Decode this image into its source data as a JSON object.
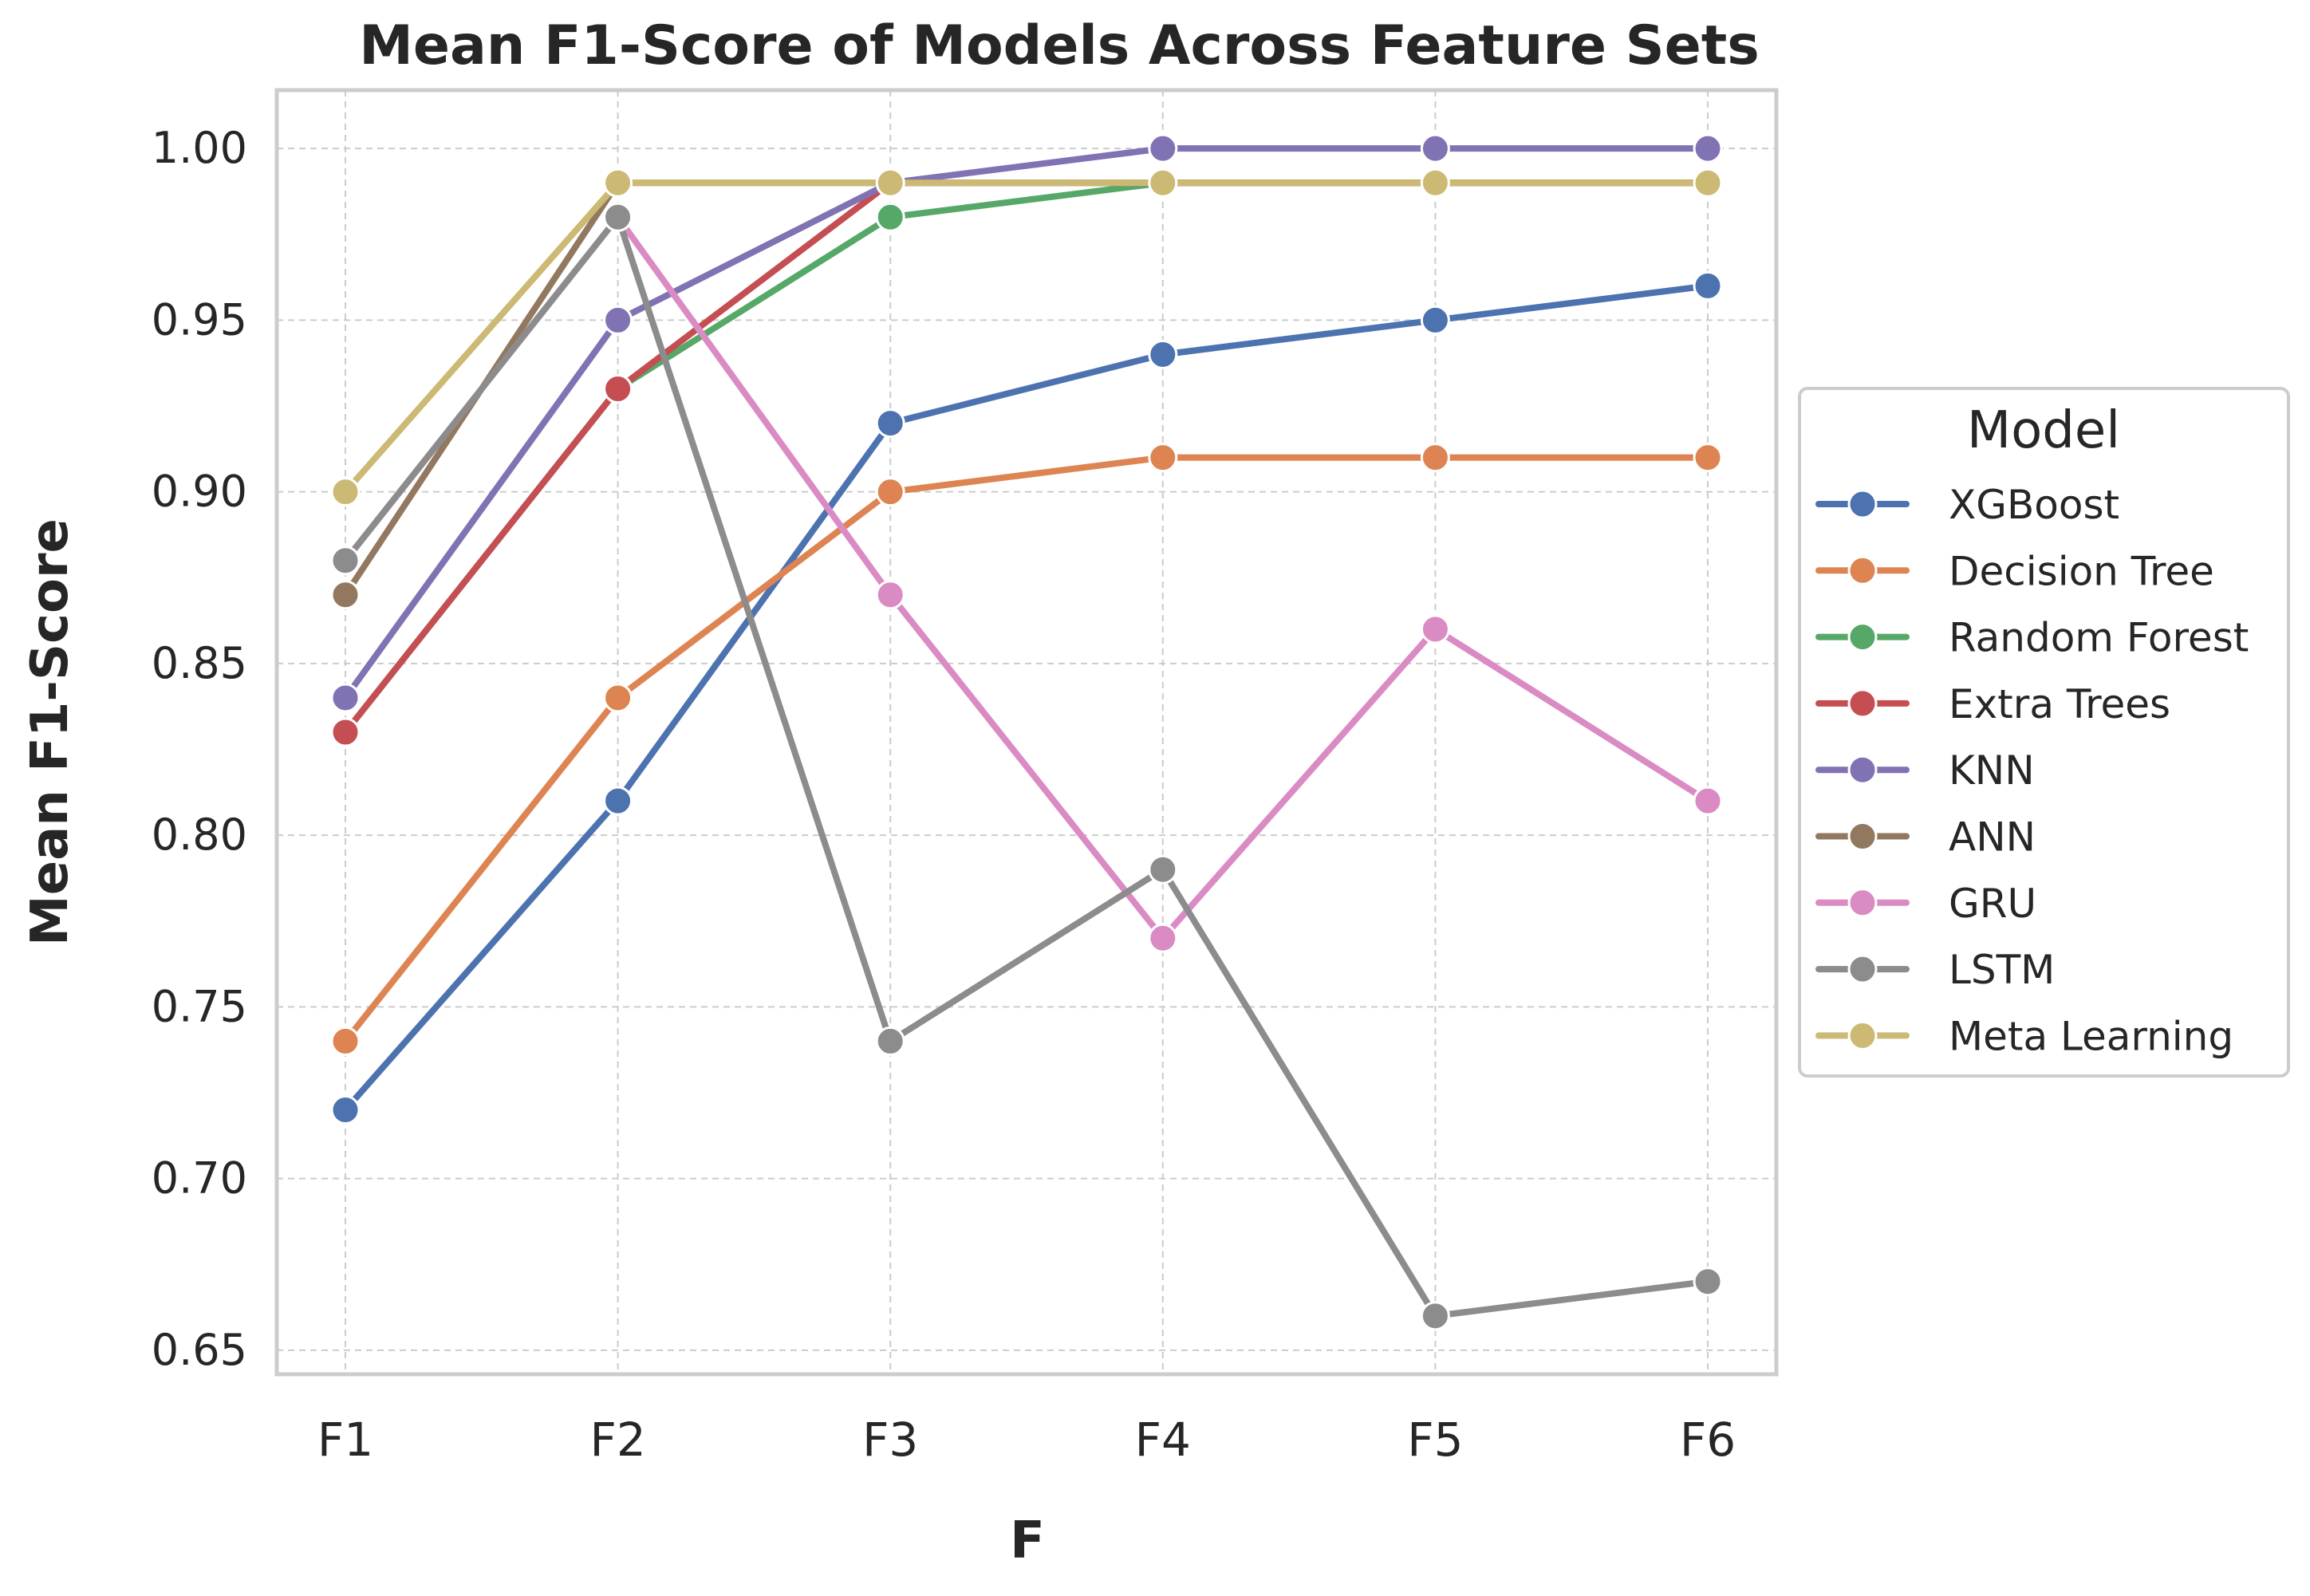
{
  "chart_data": {
    "type": "line",
    "title": "Mean F1-Score of Models Across Feature Sets",
    "xlabel": "F",
    "ylabel": "Mean F1-Score",
    "categories": [
      "F1",
      "F2",
      "F3",
      "F4",
      "F5",
      "F6"
    ],
    "ylim": [
      0.643,
      1.017
    ],
    "yticks": [
      "0.65",
      "0.70",
      "0.75",
      "0.80",
      "0.85",
      "0.90",
      "0.95",
      "1.00"
    ],
    "grid": true,
    "legend": {
      "title": "Model",
      "placement": "center-right outside"
    },
    "series": [
      {
        "name": "XGBoost",
        "color": "#4c72b0",
        "values": [
          0.72,
          0.81,
          0.92,
          0.94,
          0.95,
          0.96
        ]
      },
      {
        "name": "Decision Tree",
        "color": "#dd8452",
        "values": [
          0.74,
          0.84,
          0.9,
          0.91,
          0.91,
          0.91
        ]
      },
      {
        "name": "Random Forest",
        "color": "#55a868",
        "values": [
          0.83,
          0.93,
          0.98,
          0.99,
          0.99,
          0.99
        ]
      },
      {
        "name": "Extra Trees",
        "color": "#c44e52",
        "values": [
          0.83,
          0.93,
          0.99,
          0.99,
          0.99,
          0.99
        ]
      },
      {
        "name": "KNN",
        "color": "#8172b3",
        "values": [
          0.84,
          0.95,
          0.99,
          1.0,
          1.0,
          1.0
        ]
      },
      {
        "name": "ANN",
        "color": "#937860",
        "values": [
          0.87,
          0.99,
          0.99,
          0.99,
          0.99,
          0.99
        ]
      },
      {
        "name": "GRU",
        "color": "#da8bc3",
        "values": [
          0.88,
          0.98,
          0.87,
          0.77,
          0.86,
          0.81
        ]
      },
      {
        "name": "LSTM",
        "color": "#8c8c8c",
        "values": [
          0.88,
          0.98,
          0.74,
          0.79,
          0.66,
          0.67
        ]
      },
      {
        "name": "Meta Learning",
        "color": "#ccb974",
        "values": [
          0.9,
          0.99,
          0.99,
          0.99,
          0.99,
          0.99
        ]
      }
    ]
  }
}
